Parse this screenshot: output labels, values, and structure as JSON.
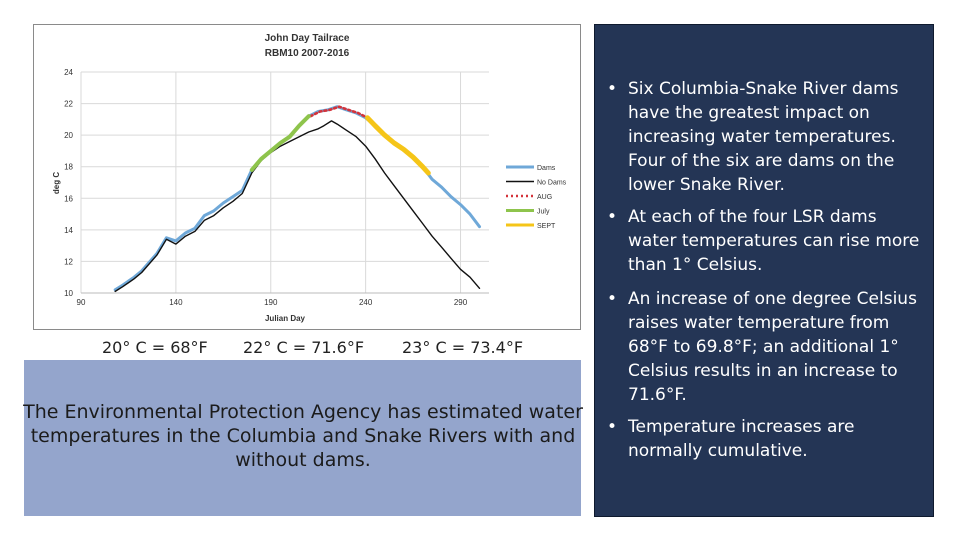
{
  "chart_data": {
    "type": "line",
    "title": "John Day Tailrace",
    "subtitle": "RBM10 2007-2016",
    "xlabel": "Julian Day",
    "ylabel": "deg C",
    "xlim": [
      90,
      305
    ],
    "ylim": [
      10,
      24
    ],
    "xticks": [
      90,
      140,
      190,
      240,
      290
    ],
    "yticks": [
      10,
      12,
      14,
      16,
      18,
      20,
      22,
      24
    ],
    "grid": true,
    "legend_position": "right",
    "series": [
      {
        "name": "Dams",
        "color": "#6fa8d8",
        "x": [
          108,
          112,
          118,
          122,
          130,
          135,
          140,
          145,
          150,
          155,
          160,
          165,
          170,
          175,
          180,
          185,
          190,
          195,
          200,
          205,
          210,
          215,
          220,
          225,
          230,
          235,
          240,
          245,
          250,
          255,
          260,
          265,
          270,
          275,
          280,
          285,
          290,
          295,
          300
        ],
        "y": [
          10.2,
          10.5,
          11.0,
          11.4,
          12.5,
          13.5,
          13.3,
          13.8,
          14.1,
          14.9,
          15.2,
          15.7,
          16.1,
          16.5,
          17.8,
          18.5,
          19.0,
          19.5,
          19.9,
          20.6,
          21.2,
          21.5,
          21.6,
          21.8,
          21.6,
          21.4,
          21.1,
          20.6,
          20.0,
          19.5,
          19.1,
          18.6,
          18.0,
          17.2,
          16.7,
          16.1,
          15.6,
          15.0,
          14.2
        ]
      },
      {
        "name": "No Dams",
        "color": "#111111",
        "x": [
          108,
          112,
          118,
          122,
          130,
          135,
          140,
          145,
          150,
          155,
          160,
          165,
          170,
          175,
          180,
          185,
          190,
          195,
          200,
          205,
          210,
          215,
          218,
          222,
          225,
          230,
          235,
          240,
          245,
          250,
          255,
          260,
          265,
          270,
          275,
          280,
          285,
          290,
          295,
          300
        ],
        "y": [
          10.1,
          10.4,
          10.9,
          11.3,
          12.4,
          13.4,
          13.1,
          13.6,
          13.9,
          14.6,
          14.9,
          15.4,
          15.8,
          16.3,
          17.6,
          18.4,
          18.9,
          19.3,
          19.6,
          19.9,
          20.2,
          20.4,
          20.6,
          20.9,
          20.7,
          20.3,
          19.9,
          19.3,
          18.5,
          17.6,
          16.8,
          16.0,
          15.2,
          14.4,
          13.6,
          12.9,
          12.2,
          11.5,
          11.0,
          10.3
        ]
      },
      {
        "name": "AUG",
        "color": "#d4333a",
        "x": [
          211,
          216,
          221,
          226,
          231,
          236,
          241
        ],
        "y": [
          21.2,
          21.5,
          21.6,
          21.8,
          21.6,
          21.4,
          21.1
        ]
      },
      {
        "name": "July",
        "color": "#8ec44c",
        "x": [
          180,
          185,
          190,
          195,
          200,
          205,
          210
        ],
        "y": [
          17.8,
          18.5,
          19.0,
          19.5,
          19.9,
          20.6,
          21.2
        ]
      },
      {
        "name": "SEPT",
        "color": "#f5c518",
        "x": [
          241,
          245,
          250,
          255,
          260,
          265,
          270,
          273
        ],
        "y": [
          21.1,
          20.6,
          20.0,
          19.5,
          19.1,
          18.6,
          18.0,
          17.6
        ]
      }
    ]
  },
  "conversions": [
    "20° C = 68°F",
    "22° C = 71.6°F",
    "23° C = 73.4°F"
  ],
  "epa_text": "The Environmental Protection Agency has estimated water temperatures in the Columbia and Snake Rivers with and without dams.",
  "bullets": [
    "Six Columbia-Snake River dams have the greatest impact on increasing water temperatures. Four of the six are dams on the lower Snake River.",
    "At each of the four LSR dams water temperatures can rise more than 1° Celsius.",
    "An increase of one degree Celsius raises water temperature from 68°F to 69.8°F; an additional 1° Celsius results in an increase to 71.6°F.",
    "Temperature increases are normally cumulative."
  ],
  "bullet_symbol": "•"
}
